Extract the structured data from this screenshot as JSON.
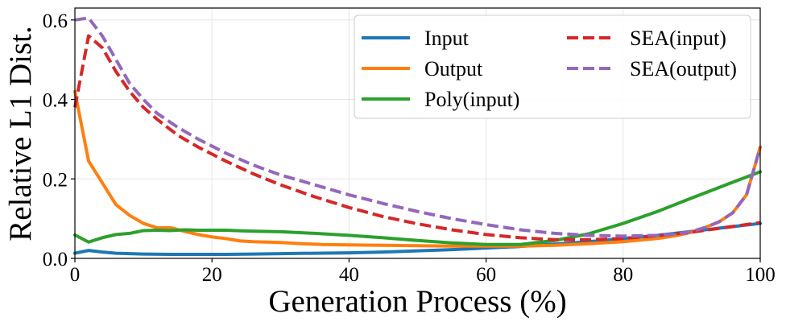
{
  "chart_data": {
    "type": "line",
    "xlabel": "Generation Process (%)",
    "ylabel": "Relative L1 Dist.",
    "xlim": [
      0,
      100
    ],
    "ylim": [
      0,
      0.63
    ],
    "xticks": [
      "0",
      "20",
      "40",
      "60",
      "80",
      "100"
    ],
    "yticks": [
      "0.0",
      "0.2",
      "0.4",
      "0.6"
    ],
    "grid": true,
    "legend_position": "top-right",
    "series": [
      {
        "name": "Input",
        "color": "#1f77b4",
        "dash": "solid",
        "x": [
          0,
          2,
          4,
          6,
          8,
          10,
          14,
          18,
          22,
          26,
          30,
          35,
          40,
          45,
          50,
          55,
          60,
          65,
          70,
          75,
          80,
          85,
          90,
          95,
          100
        ],
        "y": [
          0.013,
          0.02,
          0.016,
          0.013,
          0.012,
          0.011,
          0.01,
          0.01,
          0.01,
          0.011,
          0.012,
          0.013,
          0.014,
          0.016,
          0.019,
          0.022,
          0.026,
          0.03,
          0.036,
          0.042,
          0.05,
          0.058,
          0.068,
          0.078,
          0.088
        ]
      },
      {
        "name": "Output",
        "color": "#ff7f0e",
        "dash": "solid",
        "x": [
          0,
          2,
          4,
          6,
          8,
          10,
          12,
          14,
          16,
          18,
          20,
          22,
          24,
          26,
          28,
          30,
          33,
          36,
          40,
          45,
          50,
          55,
          60,
          65,
          70,
          75,
          80,
          85,
          88,
          90,
          92,
          94,
          96,
          98,
          100
        ],
        "y": [
          0.42,
          0.245,
          0.19,
          0.135,
          0.108,
          0.088,
          0.077,
          0.077,
          0.068,
          0.06,
          0.054,
          0.05,
          0.044,
          0.042,
          0.041,
          0.04,
          0.037,
          0.035,
          0.034,
          0.033,
          0.032,
          0.031,
          0.031,
          0.031,
          0.033,
          0.037,
          0.042,
          0.05,
          0.058,
          0.066,
          0.078,
          0.092,
          0.115,
          0.16,
          0.28
        ]
      },
      {
        "name": "Poly(input)",
        "color": "#2ca02c",
        "dash": "solid",
        "x": [
          0,
          2,
          4,
          6,
          8,
          10,
          12,
          14,
          16,
          18,
          20,
          22,
          25,
          30,
          35,
          40,
          45,
          50,
          55,
          60,
          65,
          70,
          75,
          80,
          85,
          90,
          95,
          100
        ],
        "y": [
          0.059,
          0.041,
          0.052,
          0.06,
          0.063,
          0.07,
          0.071,
          0.07,
          0.072,
          0.071,
          0.071,
          0.071,
          0.069,
          0.067,
          0.063,
          0.058,
          0.052,
          0.045,
          0.039,
          0.035,
          0.035,
          0.045,
          0.062,
          0.088,
          0.118,
          0.152,
          0.185,
          0.218
        ]
      },
      {
        "name": "SEA(input)",
        "color": "#d62728",
        "dash": "dashed",
        "x": [
          0,
          2,
          4,
          6,
          8,
          10,
          12,
          15,
          18,
          22,
          26,
          30,
          35,
          40,
          45,
          50,
          55,
          60,
          65,
          70,
          75,
          80,
          85,
          90,
          95,
          100
        ],
        "y": [
          0.38,
          0.56,
          0.53,
          0.47,
          0.42,
          0.38,
          0.35,
          0.31,
          0.28,
          0.245,
          0.213,
          0.185,
          0.155,
          0.128,
          0.105,
          0.087,
          0.072,
          0.06,
          0.052,
          0.047,
          0.047,
          0.05,
          0.057,
          0.066,
          0.078,
          0.09
        ]
      },
      {
        "name": "SEA(output)",
        "color": "#9467bd",
        "dash": "dashed",
        "x": [
          0,
          2,
          4,
          6,
          8,
          10,
          12,
          15,
          18,
          22,
          26,
          30,
          35,
          40,
          45,
          50,
          55,
          60,
          65,
          70,
          75,
          80,
          85,
          88,
          90,
          92,
          94,
          96,
          98,
          100
        ],
        "y": [
          0.6,
          0.605,
          0.56,
          0.5,
          0.44,
          0.4,
          0.365,
          0.33,
          0.3,
          0.265,
          0.235,
          0.21,
          0.185,
          0.16,
          0.138,
          0.118,
          0.1,
          0.085,
          0.072,
          0.063,
          0.058,
          0.056,
          0.058,
          0.062,
          0.068,
          0.078,
          0.092,
          0.115,
          0.16,
          0.28
        ]
      }
    ]
  }
}
